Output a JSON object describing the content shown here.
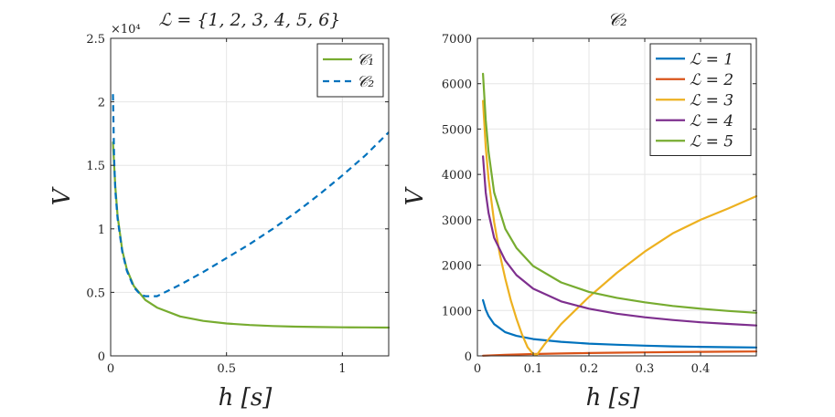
{
  "chart_data": [
    {
      "type": "line",
      "title": "ℒ = {1, 2, 3, 4, 5, 6}",
      "exponent_label": "×10⁴",
      "xlabel": "h  [s]",
      "ylabel": "V",
      "xlim": [
        0,
        1.2
      ],
      "ylim": [
        0,
        2.5
      ],
      "xticks": [
        0,
        0.5,
        1
      ],
      "xtick_labels": [
        "0",
        "0.5",
        "1"
      ],
      "yticks": [
        0,
        0.5,
        1,
        1.5,
        2,
        2.5
      ],
      "ytick_labels": [
        "0",
        "0.5",
        "1",
        "1.5",
        "2",
        "2.5"
      ],
      "grid": true,
      "legend_position": "top-right",
      "series": [
        {
          "name": "𝒞₁",
          "color": "#77ac30",
          "style": "solid",
          "x": [
            0.01,
            0.02,
            0.03,
            0.05,
            0.07,
            0.1,
            0.15,
            0.2,
            0.3,
            0.4,
            0.5,
            0.6,
            0.7,
            0.8,
            0.9,
            1.0,
            1.1,
            1.2
          ],
          "y": [
            1.68,
            1.33,
            1.1,
            0.83,
            0.68,
            0.55,
            0.44,
            0.38,
            0.31,
            0.275,
            0.255,
            0.243,
            0.235,
            0.23,
            0.227,
            0.225,
            0.224,
            0.223
          ]
        },
        {
          "name": "𝒞₂",
          "color": "#0072bd",
          "style": "dashed",
          "x": [
            0.01,
            0.015,
            0.02,
            0.03,
            0.05,
            0.07,
            0.1,
            0.13,
            0.15,
            0.2,
            0.3,
            0.4,
            0.5,
            0.6,
            0.7,
            0.8,
            0.9,
            1.0,
            1.1,
            1.2
          ],
          "y": [
            2.06,
            1.55,
            1.3,
            1.08,
            0.82,
            0.67,
            0.54,
            0.48,
            0.47,
            0.47,
            0.56,
            0.66,
            0.77,
            0.88,
            1.0,
            1.13,
            1.27,
            1.42,
            1.58,
            1.76
          ]
        }
      ]
    },
    {
      "type": "line",
      "title": "𝒞₂",
      "xlabel": "h  [s]",
      "ylabel": "V",
      "xlim": [
        0,
        0.5
      ],
      "ylim": [
        0,
        7000
      ],
      "xticks": [
        0,
        0.1,
        0.2,
        0.3,
        0.4
      ],
      "xtick_labels": [
        "0",
        "0.1",
        "0.2",
        "0.3",
        "0.4"
      ],
      "yticks": [
        0,
        1000,
        2000,
        3000,
        4000,
        5000,
        6000,
        7000
      ],
      "ytick_labels": [
        "0",
        "1000",
        "2000",
        "3000",
        "4000",
        "5000",
        "6000",
        "7000"
      ],
      "grid": true,
      "legend_position": "top-right",
      "series": [
        {
          "name": "ℒ = 1",
          "color": "#0072bd",
          "x": [
            0.01,
            0.015,
            0.02,
            0.03,
            0.05,
            0.07,
            0.1,
            0.15,
            0.2,
            0.25,
            0.3,
            0.35,
            0.4,
            0.45,
            0.5
          ],
          "y": [
            1230,
            1020,
            880,
            700,
            520,
            440,
            370,
            310,
            270,
            245,
            225,
            210,
            200,
            192,
            185
          ]
        },
        {
          "name": "ℒ = 2",
          "color": "#d95319",
          "x": [
            0.01,
            0.05,
            0.1,
            0.15,
            0.2,
            0.25,
            0.3,
            0.35,
            0.4,
            0.45,
            0.5
          ],
          "y": [
            5,
            25,
            40,
            52,
            62,
            70,
            77,
            83,
            88,
            92,
            96
          ]
        },
        {
          "name": "ℒ = 3",
          "color": "#edb120",
          "x": [
            0.01,
            0.015,
            0.02,
            0.03,
            0.04,
            0.05,
            0.06,
            0.07,
            0.08,
            0.09,
            0.1,
            0.107,
            0.12,
            0.15,
            0.2,
            0.25,
            0.3,
            0.35,
            0.4,
            0.45,
            0.5
          ],
          "y": [
            5620,
            4600,
            3900,
            2950,
            2250,
            1700,
            1220,
            820,
            470,
            190,
            40,
            30,
            250,
            700,
            1300,
            1830,
            2300,
            2700,
            3000,
            3250,
            3520
          ]
        },
        {
          "name": "ℒ = 4",
          "color": "#7e2f8e",
          "x": [
            0.01,
            0.015,
            0.02,
            0.03,
            0.05,
            0.07,
            0.1,
            0.15,
            0.2,
            0.25,
            0.3,
            0.35,
            0.4,
            0.45,
            0.5
          ],
          "y": [
            4400,
            3600,
            3150,
            2600,
            2100,
            1780,
            1480,
            1200,
            1040,
            930,
            850,
            790,
            740,
            705,
            670
          ]
        },
        {
          "name": "ℒ = 5",
          "color": "#77ac30",
          "x": [
            0.01,
            0.015,
            0.02,
            0.03,
            0.05,
            0.07,
            0.1,
            0.15,
            0.2,
            0.25,
            0.3,
            0.35,
            0.4,
            0.45,
            0.5
          ],
          "y": [
            6220,
            5200,
            4500,
            3600,
            2800,
            2380,
            1980,
            1620,
            1410,
            1280,
            1180,
            1100,
            1040,
            990,
            950
          ]
        }
      ]
    }
  ]
}
